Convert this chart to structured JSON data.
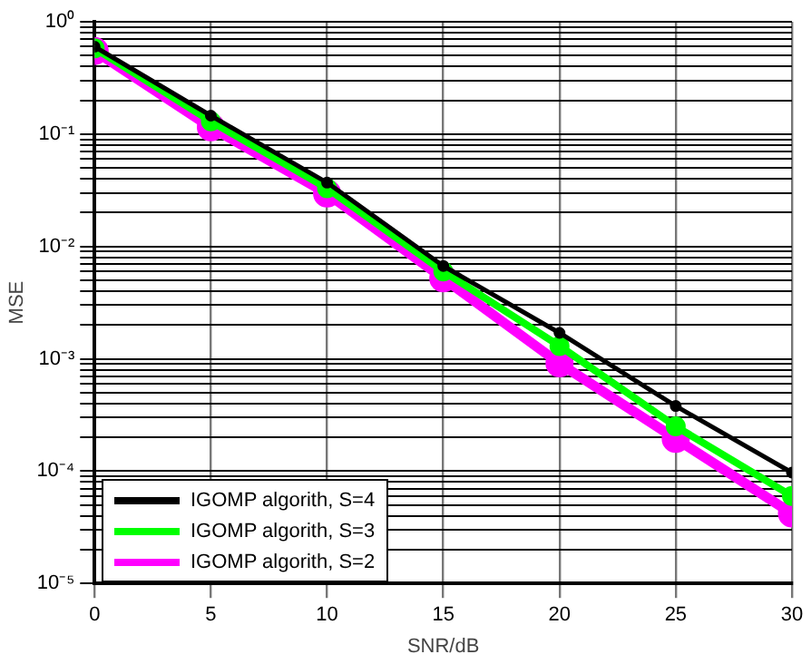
{
  "chart_data": {
    "type": "line",
    "xlabel": "SNR/dB",
    "ylabel": "MSE",
    "x": [
      0,
      5,
      10,
      15,
      20,
      25,
      30
    ],
    "series": [
      {
        "name": "IGOMP algorith, S=4",
        "color": "#000000",
        "values": [
          0.6,
          0.146,
          0.037,
          0.0067,
          0.0017,
          0.00038,
          9.7e-05
        ]
      },
      {
        "name": "IGOMP algorith, S=3",
        "color": "#00ff00",
        "values": [
          0.58,
          0.13,
          0.033,
          0.006,
          0.0013,
          0.00025,
          6e-05
        ]
      },
      {
        "name": "IGOMP algorith, S=2",
        "color": "#ff00ff",
        "values": [
          0.55,
          0.115,
          0.0296,
          0.0052,
          0.00091,
          0.000194,
          4.2e-05
        ]
      }
    ],
    "log": "y",
    "xlim": [
      0,
      30
    ],
    "xticks": [
      0,
      5,
      10,
      15,
      20,
      25,
      30
    ],
    "ylim": [
      1e-05,
      1
    ],
    "yticks": [
      {
        "value": 1e-05,
        "label": "10⁻⁵"
      },
      {
        "value": 2e-05,
        "label": null
      },
      {
        "value": 3e-05,
        "label": null
      },
      {
        "value": 4e-05,
        "label": null
      },
      {
        "value": 5e-05,
        "label": null
      },
      {
        "value": 6e-05,
        "label": null
      },
      {
        "value": 7e-05,
        "label": null
      },
      {
        "value": 8e-05,
        "label": null
      },
      {
        "value": 9e-05,
        "label": null
      },
      {
        "value": 0.0001,
        "label": "10⁻⁴"
      },
      {
        "value": 0.0002,
        "label": null
      },
      {
        "value": 0.0003,
        "label": null
      },
      {
        "value": 0.0004,
        "label": null
      },
      {
        "value": 0.0005,
        "label": null
      },
      {
        "value": 0.0006,
        "label": null
      },
      {
        "value": 0.0007,
        "label": null
      },
      {
        "value": 0.0008,
        "label": null
      },
      {
        "value": 0.0009,
        "label": null
      },
      {
        "value": 0.001,
        "label": "10⁻³"
      },
      {
        "value": 0.002,
        "label": null
      },
      {
        "value": 0.003,
        "label": null
      },
      {
        "value": 0.004,
        "label": null
      },
      {
        "value": 0.005,
        "label": null
      },
      {
        "value": 0.006,
        "label": null
      },
      {
        "value": 0.007,
        "label": null
      },
      {
        "value": 0.008,
        "label": null
      },
      {
        "value": 0.009,
        "label": null
      },
      {
        "value": 0.01,
        "label": "10⁻²"
      },
      {
        "value": 0.02,
        "label": null
      },
      {
        "value": 0.03,
        "label": null
      },
      {
        "value": 0.04,
        "label": null
      },
      {
        "value": 0.05,
        "label": null
      },
      {
        "value": 0.06,
        "label": null
      },
      {
        "value": 0.07,
        "label": null
      },
      {
        "value": 0.08,
        "label": null
      },
      {
        "value": 0.09,
        "label": null
      },
      {
        "value": 0.1,
        "label": "10⁻¹"
      },
      {
        "value": 0.2,
        "label": null
      },
      {
        "value": 0.3,
        "label": null
      },
      {
        "value": 0.4,
        "label": null
      },
      {
        "value": 0.5,
        "label": null
      },
      {
        "value": 0.6,
        "label": null
      },
      {
        "value": 0.7,
        "label": null
      },
      {
        "value": 0.8,
        "label": null
      },
      {
        "value": 0.9,
        "label": null
      },
      {
        "value": 1,
        "label": "10⁰"
      }
    ],
    "grid": true,
    "legend": "bottom left",
    "marker": "circle",
    "line_style": "solid"
  }
}
